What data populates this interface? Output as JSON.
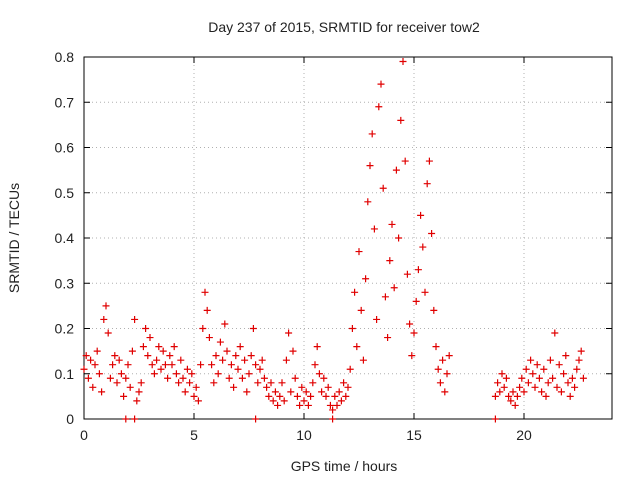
{
  "chart_data": {
    "type": "scatter",
    "title": "Day 237 of 2015, SRMTID for receiver tow2",
    "xlabel": "GPS time / hours",
    "ylabel": "SRMTID / TECUs",
    "xlim": [
      0,
      24
    ],
    "ylim": [
      0,
      0.8
    ],
    "x_ticks": [
      0,
      5,
      10,
      15,
      20
    ],
    "y_ticks": [
      0,
      0.1,
      0.2,
      0.3,
      0.4,
      0.5,
      0.6,
      0.7,
      0.8
    ],
    "x_tick_labels": [
      "0",
      "5",
      "10",
      "15",
      "20"
    ],
    "y_tick_labels": [
      "0",
      "0.1",
      "0.2",
      "0.3",
      "0.4",
      "0.5",
      "0.6",
      "0.7",
      "0.8"
    ],
    "grid": true,
    "marker": "+",
    "color": "#e00000",
    "series": [
      {
        "name": "SRMTID",
        "points": [
          [
            0.0,
            0.11
          ],
          [
            0.1,
            0.14
          ],
          [
            0.2,
            0.09
          ],
          [
            0.3,
            0.13
          ],
          [
            0.4,
            0.07
          ],
          [
            0.5,
            0.12
          ],
          [
            0.6,
            0.15
          ],
          [
            0.7,
            0.1
          ],
          [
            0.8,
            0.06
          ],
          [
            0.9,
            0.22
          ],
          [
            1.0,
            0.25
          ],
          [
            1.1,
            0.19
          ],
          [
            1.2,
            0.09
          ],
          [
            1.3,
            0.12
          ],
          [
            1.4,
            0.14
          ],
          [
            1.5,
            0.08
          ],
          [
            1.6,
            0.13
          ],
          [
            1.7,
            0.1
          ],
          [
            1.8,
            0.05
          ],
          [
            1.9,
            0.09
          ],
          [
            2.0,
            0.12
          ],
          [
            2.1,
            0.07
          ],
          [
            2.2,
            0.15
          ],
          [
            2.3,
            0.22
          ],
          [
            2.4,
            0.04
          ],
          [
            2.5,
            0.06
          ],
          [
            2.6,
            0.08
          ],
          [
            2.7,
            0.16
          ],
          [
            2.8,
            0.2
          ],
          [
            2.9,
            0.14
          ],
          [
            3.0,
            0.18
          ],
          [
            3.1,
            0.12
          ],
          [
            3.2,
            0.1
          ],
          [
            3.3,
            0.13
          ],
          [
            3.4,
            0.16
          ],
          [
            3.5,
            0.11
          ],
          [
            3.6,
            0.15
          ],
          [
            3.7,
            0.12
          ],
          [
            3.8,
            0.09
          ],
          [
            3.9,
            0.14
          ],
          [
            4.0,
            0.12
          ],
          [
            4.1,
            0.16
          ],
          [
            4.2,
            0.1
          ],
          [
            4.3,
            0.08
          ],
          [
            4.4,
            0.13
          ],
          [
            4.5,
            0.09
          ],
          [
            4.6,
            0.06
          ],
          [
            4.7,
            0.11
          ],
          [
            4.8,
            0.08
          ],
          [
            4.9,
            0.1
          ],
          [
            5.0,
            0.05
          ],
          [
            5.1,
            0.07
          ],
          [
            5.2,
            0.04
          ],
          [
            5.3,
            0.12
          ],
          [
            5.4,
            0.2
          ],
          [
            5.5,
            0.28
          ],
          [
            5.6,
            0.24
          ],
          [
            5.7,
            0.18
          ],
          [
            5.8,
            0.12
          ],
          [
            5.9,
            0.08
          ],
          [
            6.0,
            0.14
          ],
          [
            6.1,
            0.1
          ],
          [
            6.2,
            0.17
          ],
          [
            6.3,
            0.13
          ],
          [
            6.4,
            0.21
          ],
          [
            6.5,
            0.15
          ],
          [
            6.6,
            0.09
          ],
          [
            6.7,
            0.12
          ],
          [
            6.8,
            0.07
          ],
          [
            6.9,
            0.14
          ],
          [
            7.0,
            0.11
          ],
          [
            7.1,
            0.16
          ],
          [
            7.2,
            0.09
          ],
          [
            7.3,
            0.13
          ],
          [
            7.4,
            0.06
          ],
          [
            7.5,
            0.1
          ],
          [
            7.6,
            0.14
          ],
          [
            7.7,
            0.2
          ],
          [
            7.8,
            0.12
          ],
          [
            7.9,
            0.08
          ],
          [
            8.0,
            0.11
          ],
          [
            8.1,
            0.13
          ],
          [
            8.2,
            0.09
          ],
          [
            8.3,
            0.07
          ],
          [
            8.4,
            0.05
          ],
          [
            8.5,
            0.08
          ],
          [
            8.6,
            0.04
          ],
          [
            8.7,
            0.06
          ],
          [
            8.8,
            0.03
          ],
          [
            8.9,
            0.05
          ],
          [
            9.0,
            0.08
          ],
          [
            9.1,
            0.04
          ],
          [
            9.2,
            0.13
          ],
          [
            9.3,
            0.19
          ],
          [
            9.4,
            0.06
          ],
          [
            9.5,
            0.15
          ],
          [
            9.6,
            0.09
          ],
          [
            9.7,
            0.05
          ],
          [
            9.8,
            0.03
          ],
          [
            9.9,
            0.07
          ],
          [
            10.0,
            0.04
          ],
          [
            10.1,
            0.06
          ],
          [
            10.2,
            0.03
          ],
          [
            10.3,
            0.05
          ],
          [
            10.4,
            0.08
          ],
          [
            10.5,
            0.12
          ],
          [
            10.6,
            0.16
          ],
          [
            10.7,
            0.1
          ],
          [
            10.8,
            0.06
          ],
          [
            10.9,
            0.09
          ],
          [
            11.0,
            0.05
          ],
          [
            11.1,
            0.07
          ],
          [
            11.2,
            0.03
          ],
          [
            11.3,
            0.02
          ],
          [
            11.4,
            0.05
          ],
          [
            11.5,
            0.03
          ],
          [
            11.6,
            0.06
          ],
          [
            11.7,
            0.04
          ],
          [
            11.8,
            0.08
          ],
          [
            11.9,
            0.05
          ],
          [
            12.0,
            0.07
          ],
          [
            12.1,
            0.11
          ],
          [
            12.2,
            0.2
          ],
          [
            12.3,
            0.28
          ],
          [
            12.4,
            0.16
          ],
          [
            12.5,
            0.37
          ],
          [
            12.6,
            0.24
          ],
          [
            12.7,
            0.13
          ],
          [
            12.8,
            0.31
          ],
          [
            12.9,
            0.48
          ],
          [
            13.0,
            0.56
          ],
          [
            13.1,
            0.63
          ],
          [
            13.2,
            0.42
          ],
          [
            13.3,
            0.22
          ],
          [
            13.4,
            0.69
          ],
          [
            13.5,
            0.74
          ],
          [
            13.6,
            0.51
          ],
          [
            13.7,
            0.27
          ],
          [
            13.8,
            0.18
          ],
          [
            13.9,
            0.35
          ],
          [
            14.0,
            0.43
          ],
          [
            14.1,
            0.29
          ],
          [
            14.2,
            0.55
          ],
          [
            14.3,
            0.4
          ],
          [
            14.4,
            0.66
          ],
          [
            14.5,
            0.79
          ],
          [
            14.6,
            0.57
          ],
          [
            14.7,
            0.32
          ],
          [
            14.8,
            0.21
          ],
          [
            14.9,
            0.14
          ],
          [
            15.0,
            0.19
          ],
          [
            15.1,
            0.26
          ],
          [
            15.2,
            0.33
          ],
          [
            15.3,
            0.45
          ],
          [
            15.4,
            0.38
          ],
          [
            15.5,
            0.28
          ],
          [
            15.6,
            0.52
          ],
          [
            15.7,
            0.57
          ],
          [
            15.8,
            0.41
          ],
          [
            15.9,
            0.24
          ],
          [
            16.0,
            0.16
          ],
          [
            16.1,
            0.11
          ],
          [
            16.2,
            0.08
          ],
          [
            16.3,
            0.13
          ],
          [
            16.4,
            0.06
          ],
          [
            16.5,
            0.1
          ],
          [
            16.6,
            0.14
          ],
          [
            18.7,
            0.05
          ],
          [
            18.8,
            0.08
          ],
          [
            18.9,
            0.06
          ],
          [
            19.0,
            0.1
          ],
          [
            19.1,
            0.07
          ],
          [
            19.2,
            0.09
          ],
          [
            19.3,
            0.05
          ],
          [
            19.4,
            0.04
          ],
          [
            19.5,
            0.06
          ],
          [
            19.6,
            0.03
          ],
          [
            19.7,
            0.05
          ],
          [
            19.8,
            0.07
          ],
          [
            19.9,
            0.09
          ],
          [
            20.0,
            0.06
          ],
          [
            20.1,
            0.11
          ],
          [
            20.2,
            0.08
          ],
          [
            20.3,
            0.13
          ],
          [
            20.4,
            0.1
          ],
          [
            20.5,
            0.07
          ],
          [
            20.6,
            0.12
          ],
          [
            20.7,
            0.09
          ],
          [
            20.8,
            0.06
          ],
          [
            20.9,
            0.11
          ],
          [
            21.0,
            0.05
          ],
          [
            21.1,
            0.08
          ],
          [
            21.2,
            0.13
          ],
          [
            21.3,
            0.09
          ],
          [
            21.4,
            0.19
          ],
          [
            21.5,
            0.07
          ],
          [
            21.6,
            0.12
          ],
          [
            21.7,
            0.06
          ],
          [
            21.8,
            0.1
          ],
          [
            21.9,
            0.14
          ],
          [
            22.0,
            0.08
          ],
          [
            22.1,
            0.05
          ],
          [
            22.2,
            0.09
          ],
          [
            22.3,
            0.07
          ],
          [
            22.4,
            0.11
          ],
          [
            22.5,
            0.13
          ],
          [
            22.6,
            0.15
          ],
          [
            22.7,
            0.09
          ]
        ]
      }
    ],
    "zero_points": [
      1.9,
      2.3,
      7.8,
      11.3,
      18.7
    ]
  }
}
